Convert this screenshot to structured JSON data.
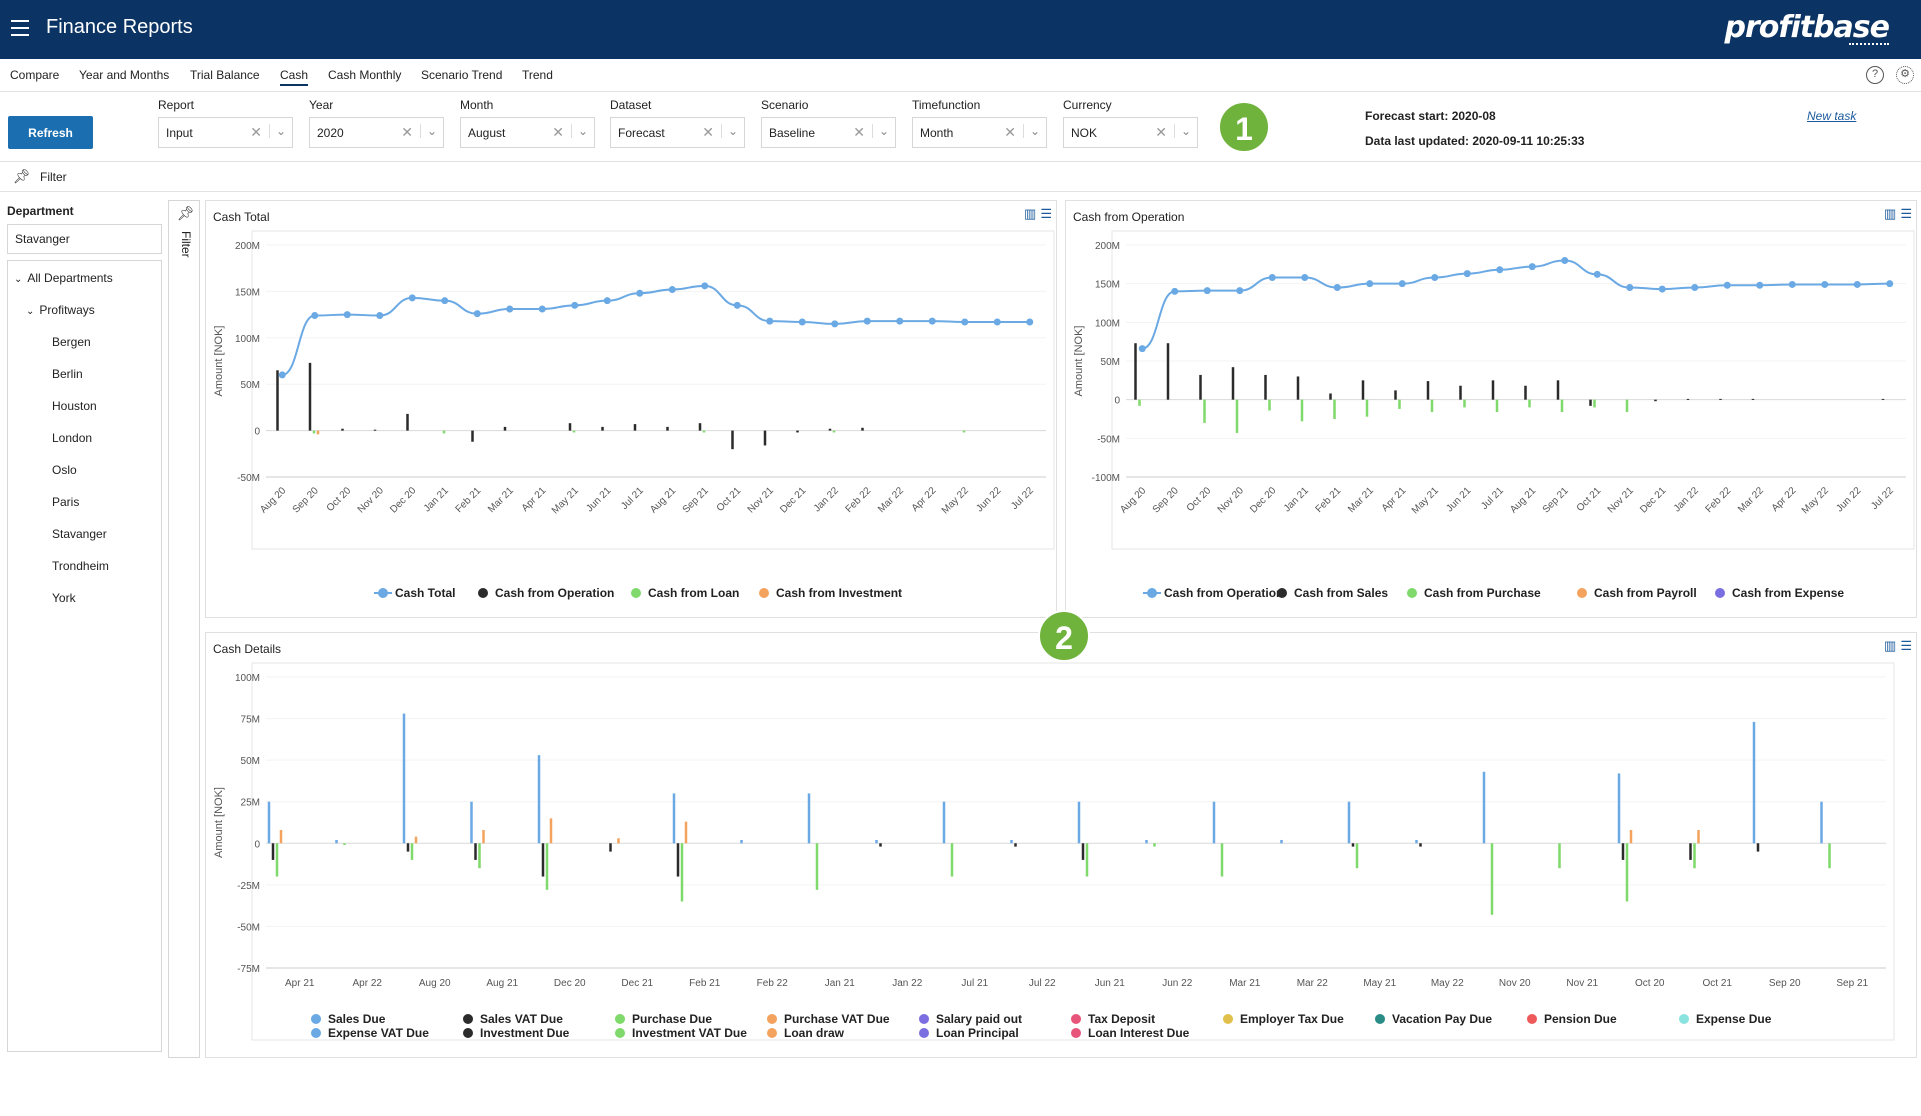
{
  "app": {
    "title": "Finance Reports",
    "logo": "profitbase"
  },
  "tabs": [
    "Compare",
    "Year and Months",
    "Trial Balance",
    "Cash",
    "Cash Monthly",
    "Scenario Trend",
    "Trend"
  ],
  "active_tab": "Cash",
  "toolbar": {
    "refresh_label": "Refresh",
    "fields": [
      {
        "label": "Report",
        "value": "Input"
      },
      {
        "label": "Year",
        "value": "2020"
      },
      {
        "label": "Month",
        "value": "August"
      },
      {
        "label": "Dataset",
        "value": "Forecast"
      },
      {
        "label": "Scenario",
        "value": "Baseline"
      },
      {
        "label": "Timefunction",
        "value": "Month"
      },
      {
        "label": "Currency",
        "value": "NOK"
      }
    ],
    "badge1": "1",
    "forecast_start": "Forecast start: 2020-08",
    "data_updated": "Data last updated: 2020-09-11 10:25:33",
    "new_task": "New task"
  },
  "filter": {
    "label": "Filter",
    "side_label": "Filter"
  },
  "sidebar": {
    "department_label": "Department",
    "department_value": "Stavanger",
    "tree": {
      "root": "All Departments",
      "group": "Profitways",
      "items": [
        "Bergen",
        "Berlin",
        "Houston",
        "London",
        "Oslo",
        "Paris",
        "Stavanger",
        "Trondheim",
        "York"
      ]
    }
  },
  "badge2": "2",
  "colors": {
    "blue": "#6aa9e3",
    "dark": "#2b2b2b",
    "green": "#7fd96b",
    "orange": "#f3a35e",
    "purple": "#7b6ee0",
    "red": "#e8557a",
    "yellow": "#e0c04a",
    "teal": "#2a8c86",
    "salmon": "#ee5a5a",
    "cyan": "#8be3e0",
    "header": "#0b3464",
    "accent": "#1b6fb0"
  },
  "chart_data": [
    {
      "type": "bar",
      "title": "Cash Total",
      "ylabel": "Amount [NOK]",
      "ylim": [
        -50,
        200
      ],
      "yticks": [
        "200M",
        "150M",
        "100M",
        "50M",
        "0",
        "-50M"
      ],
      "tick_values": [
        200,
        150,
        100,
        50,
        0,
        -50
      ],
      "categories": [
        "Aug 20",
        "Sep 20",
        "Oct 20",
        "Nov 20",
        "Dec 20",
        "Jan 21",
        "Feb 21",
        "Mar 21",
        "Apr 21",
        "May 21",
        "Jun 21",
        "Jul 21",
        "Aug 21",
        "Sep 21",
        "Oct 21",
        "Nov 21",
        "Dec 21",
        "Jan 22",
        "Feb 22",
        "Mar 22",
        "Apr 22",
        "May 22",
        "Jun 22",
        "Jul 22"
      ],
      "series": [
        {
          "name": "Cash Total",
          "kind": "line",
          "color": "#6aa9e3",
          "values": [
            60,
            124,
            125,
            124,
            143,
            140,
            126,
            131,
            131,
            135,
            140,
            148,
            152,
            156,
            135,
            118,
            117,
            115,
            118,
            118,
            118,
            117,
            117,
            117
          ]
        },
        {
          "name": "Cash from Operation",
          "kind": "bar",
          "color": "#2b2b2b",
          "values": [
            65,
            73,
            2,
            1,
            18,
            0,
            -12,
            4,
            0,
            8,
            4,
            7,
            4,
            8,
            -20,
            -16,
            -2,
            2,
            3,
            0,
            0,
            0,
            0,
            0
          ]
        },
        {
          "name": "Cash from Loan",
          "kind": "bar",
          "color": "#7fd96b",
          "values": [
            0,
            -3,
            0,
            0,
            0,
            -3,
            0,
            0,
            0,
            -2,
            0,
            0,
            0,
            -2,
            0,
            0,
            0,
            -2,
            0,
            0,
            0,
            -2,
            0,
            0
          ]
        },
        {
          "name": "Cash from Investment",
          "kind": "bar",
          "color": "#f3a35e",
          "values": [
            0,
            -4,
            0,
            0,
            0,
            0,
            0,
            0,
            0,
            0,
            0,
            0,
            0,
            0,
            0,
            0,
            0,
            0,
            0,
            0,
            0,
            0,
            0,
            0
          ]
        }
      ]
    },
    {
      "type": "bar",
      "title": "Cash from Operation",
      "ylabel": "Amount [NOK]",
      "ylim": [
        -100,
        200
      ],
      "yticks": [
        "200M",
        "150M",
        "100M",
        "50M",
        "0",
        "-50M",
        "-100M"
      ],
      "tick_values": [
        200,
        150,
        100,
        50,
        0,
        -50,
        -100
      ],
      "categories": [
        "Aug 20",
        "Sep 20",
        "Oct 20",
        "Nov 20",
        "Dec 20",
        "Jan 21",
        "Feb 21",
        "Mar 21",
        "Apr 21",
        "May 21",
        "Jun 21",
        "Jul 21",
        "Aug 21",
        "Sep 21",
        "Oct 21",
        "Nov 21",
        "Dec 21",
        "Jan 22",
        "Feb 22",
        "Mar 22",
        "Apr 22",
        "May 22",
        "Jun 22",
        "Jul 22"
      ],
      "series": [
        {
          "name": "Cash from Operation",
          "kind": "line",
          "color": "#6aa9e3",
          "values": [
            66,
            140,
            141,
            141,
            158,
            158,
            145,
            150,
            150,
            158,
            163,
            168,
            172,
            180,
            162,
            145,
            143,
            145,
            148,
            148,
            149,
            149,
            149,
            150
          ]
        },
        {
          "name": "Cash from Sales",
          "kind": "bar",
          "color": "#2b2b2b",
          "values": [
            73,
            73,
            32,
            42,
            32,
            30,
            8,
            25,
            12,
            24,
            18,
            25,
            18,
            25,
            -8,
            0,
            -2,
            1,
            1,
            1,
            0,
            0,
            0,
            1
          ]
        },
        {
          "name": "Cash from Purchase",
          "kind": "bar",
          "color": "#7fd96b",
          "values": [
            -8,
            0,
            -30,
            -43,
            -14,
            -28,
            -25,
            -22,
            -12,
            -16,
            -10,
            -16,
            -10,
            -16,
            -10,
            -16,
            0,
            0,
            0,
            0,
            0,
            0,
            0,
            0
          ]
        },
        {
          "name": "Cash from Payroll",
          "kind": "bar",
          "color": "#f3a35e",
          "values": [
            0,
            0,
            0,
            0,
            0,
            0,
            0,
            0,
            0,
            0,
            0,
            0,
            0,
            0,
            0,
            0,
            0,
            0,
            0,
            0,
            0,
            0,
            0,
            0
          ]
        },
        {
          "name": "Cash from Expense",
          "kind": "bar",
          "color": "#7b6ee0",
          "values": [
            0,
            0,
            0,
            0,
            0,
            0,
            0,
            0,
            0,
            0,
            0,
            0,
            0,
            0,
            0,
            0,
            0,
            0,
            0,
            0,
            0,
            0,
            0,
            0
          ]
        }
      ]
    },
    {
      "type": "bar",
      "title": "Cash Details",
      "ylabel": "Amount [NOK]",
      "ylim": [
        -75,
        100
      ],
      "yticks": [
        "100M",
        "75M",
        "50M",
        "25M",
        "0",
        "-25M",
        "-50M",
        "-75M"
      ],
      "tick_values": [
        100,
        75,
        50,
        25,
        0,
        -25,
        -50,
        -75
      ],
      "categories": [
        "Apr 21",
        "Apr 22",
        "Aug 20",
        "Aug 21",
        "Dec 20",
        "Dec 21",
        "Feb 21",
        "Feb 22",
        "Jan 21",
        "Jan 22",
        "Jul 21",
        "Jul 22",
        "Jun 21",
        "Jun 22",
        "Mar 21",
        "Mar 22",
        "May 21",
        "May 22",
        "Nov 20",
        "Nov 21",
        "Oct 20",
        "Oct 21",
        "Sep 20",
        "Sep 21"
      ],
      "series": [
        {
          "name": "Sales Due",
          "color": "#6aa9e3",
          "values": [
            25,
            2,
            78,
            25,
            53,
            0,
            30,
            2,
            30,
            2,
            25,
            2,
            25,
            2,
            25,
            2,
            25,
            2,
            43,
            0,
            42,
            0,
            73,
            25
          ]
        },
        {
          "name": "Sales VAT Due",
          "color": "#2b2b2b",
          "values": [
            -10,
            0,
            -5,
            -10,
            -20,
            -5,
            -20,
            0,
            0,
            -2,
            0,
            -2,
            -10,
            0,
            0,
            0,
            -2,
            -2,
            0,
            0,
            -10,
            -10,
            -5,
            0
          ]
        },
        {
          "name": "Purchase Due",
          "color": "#7fd96b",
          "values": [
            -20,
            -1,
            -10,
            -15,
            -28,
            0,
            -35,
            0,
            -28,
            0,
            -20,
            0,
            -20,
            -2,
            -20,
            0,
            -15,
            0,
            -43,
            -15,
            -35,
            -15,
            0,
            -15
          ]
        },
        {
          "name": "Purchase VAT Due",
          "color": "#f3a35e",
          "values": [
            8,
            0,
            4,
            8,
            15,
            3,
            13,
            0,
            0,
            0,
            0,
            0,
            0,
            0,
            0,
            0,
            0,
            0,
            0,
            0,
            8,
            8,
            0,
            0
          ]
        },
        {
          "name": "Salary paid out",
          "color": "#7b6ee0",
          "values": [
            0,
            0,
            0,
            0,
            0,
            0,
            0,
            0,
            0,
            0,
            0,
            0,
            0,
            0,
            0,
            0,
            0,
            0,
            0,
            0,
            0,
            0,
            0,
            0
          ]
        },
        {
          "name": "Tax Deposit",
          "color": "#e8557a",
          "values": [
            0,
            0,
            0,
            0,
            0,
            0,
            0,
            0,
            0,
            0,
            0,
            0,
            0,
            0,
            0,
            0,
            0,
            0,
            0,
            0,
            0,
            0,
            0,
            0
          ]
        },
        {
          "name": "Employer Tax Due",
          "color": "#e0c04a",
          "values": [
            0,
            0,
            0,
            0,
            0,
            0,
            0,
            0,
            0,
            0,
            0,
            0,
            0,
            0,
            0,
            0,
            0,
            0,
            0,
            0,
            0,
            0,
            0,
            0
          ]
        },
        {
          "name": "Vacation Pay Due",
          "color": "#2a8c86",
          "values": [
            0,
            0,
            0,
            0,
            0,
            0,
            0,
            0,
            0,
            0,
            0,
            0,
            0,
            0,
            0,
            0,
            0,
            0,
            0,
            0,
            0,
            0,
            0,
            0
          ]
        },
        {
          "name": "Pension Due",
          "color": "#ee5a5a",
          "values": [
            0,
            0,
            0,
            0,
            0,
            0,
            0,
            0,
            0,
            0,
            0,
            0,
            0,
            0,
            0,
            0,
            0,
            0,
            0,
            0,
            0,
            0,
            0,
            0
          ]
        },
        {
          "name": "Expense Due",
          "color": "#8be3e0",
          "values": [
            0,
            0,
            0,
            0,
            0,
            0,
            0,
            0,
            0,
            0,
            0,
            0,
            0,
            0,
            0,
            0,
            0,
            0,
            0,
            0,
            0,
            0,
            0,
            0
          ]
        },
        {
          "name": "Expense VAT Due",
          "color": "#6aa9e3",
          "values": [
            0,
            0,
            0,
            0,
            0,
            0,
            0,
            0,
            0,
            0,
            0,
            0,
            0,
            0,
            0,
            0,
            0,
            0,
            0,
            0,
            0,
            0,
            0,
            0
          ]
        },
        {
          "name": "Investment Due",
          "color": "#2b2b2b",
          "values": [
            0,
            0,
            0,
            0,
            0,
            0,
            0,
            0,
            0,
            0,
            0,
            0,
            0,
            0,
            0,
            0,
            0,
            0,
            0,
            0,
            0,
            0,
            0,
            0
          ]
        },
        {
          "name": "Investment VAT Due",
          "color": "#7fd96b",
          "values": [
            0,
            0,
            0,
            0,
            0,
            0,
            0,
            0,
            0,
            0,
            0,
            0,
            0,
            0,
            0,
            0,
            0,
            0,
            0,
            0,
            0,
            0,
            0,
            0
          ]
        },
        {
          "name": "Loan draw",
          "color": "#f3a35e",
          "values": [
            0,
            0,
            0,
            0,
            0,
            0,
            0,
            0,
            0,
            0,
            0,
            0,
            0,
            0,
            0,
            0,
            0,
            0,
            0,
            0,
            0,
            0,
            0,
            0
          ]
        },
        {
          "name": "Loan Principal",
          "color": "#7b6ee0",
          "values": [
            0,
            0,
            0,
            0,
            0,
            0,
            0,
            0,
            0,
            0,
            0,
            0,
            0,
            0,
            0,
            0,
            0,
            0,
            0,
            0,
            0,
            0,
            0,
            0
          ]
        },
        {
          "name": "Loan Interest Due",
          "color": "#e8557a",
          "values": [
            0,
            0,
            0,
            0,
            0,
            0,
            0,
            0,
            0,
            0,
            0,
            0,
            0,
            0,
            0,
            0,
            0,
            0,
            0,
            0,
            0,
            0,
            0,
            0
          ]
        }
      ]
    }
  ]
}
